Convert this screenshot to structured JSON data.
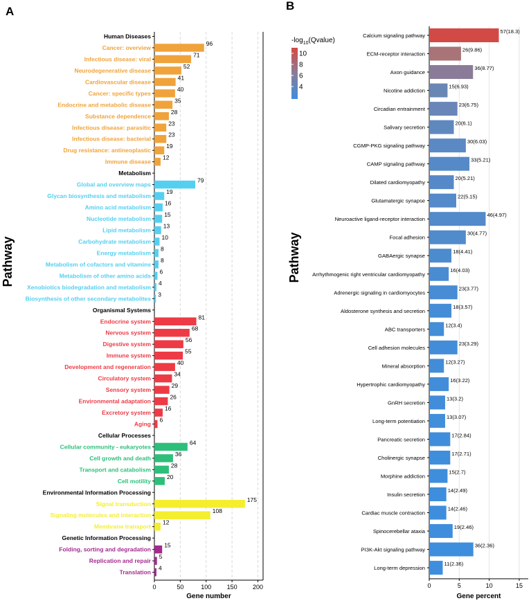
{
  "chart_data": [
    {
      "panel": "A",
      "type": "bar",
      "orientation": "horizontal",
      "xlabel": "Gene number",
      "ylabel": "Pathway",
      "xlim": [
        0,
        210
      ],
      "xticks": [
        0,
        50,
        100,
        150,
        200
      ],
      "grid": "vertical dashed",
      "groups": [
        {
          "name": "Human Diseases",
          "color": "#F0A33A",
          "items": [
            {
              "label": "Cancer: overview",
              "value": 96
            },
            {
              "label": "Infectious disease: viral",
              "value": 71
            },
            {
              "label": "Neurodegenerative disease",
              "value": 52
            },
            {
              "label": "Cardiovascular disease",
              "value": 41
            },
            {
              "label": "Cancer: specific types",
              "value": 40
            },
            {
              "label": "Endocrine and metabolic disease",
              "value": 35
            },
            {
              "label": "Substance dependence",
              "value": 28
            },
            {
              "label": "Infectious disease: parasitic",
              "value": 23
            },
            {
              "label": "Infectious disease: bacterial",
              "value": 23
            },
            {
              "label": "Drug resistance: antineoplastic",
              "value": 19
            },
            {
              "label": "Immune disease",
              "value": 12
            }
          ]
        },
        {
          "name": "Metabolism",
          "color": "#55CFF0",
          "items": [
            {
              "label": "Global and overview maps",
              "value": 79
            },
            {
              "label": "Glycan biosynthesis and metabolism",
              "value": 19
            },
            {
              "label": "Amino acid metabolism",
              "value": 16
            },
            {
              "label": "Nucleotide metabolism",
              "value": 15
            },
            {
              "label": "Lipid metabolism",
              "value": 13
            },
            {
              "label": "Carbohydrate metabolism",
              "value": 10
            },
            {
              "label": "Energy metabolism",
              "value": 8
            },
            {
              "label": "Metabolism of cofactors and vitamins",
              "value": 8
            },
            {
              "label": "Metabolism of other amino acids",
              "value": 6
            },
            {
              "label": "Xenobiotics biodegradation and metabolism",
              "value": 4
            },
            {
              "label": "Biosynthesis of other secondary metabolites",
              "value": 3
            }
          ]
        },
        {
          "name": "Organismal Systems",
          "color": "#EE3A45",
          "items": [
            {
              "label": "Endocrine system",
              "value": 81
            },
            {
              "label": "Nervous system",
              "value": 68
            },
            {
              "label": "Digestive system",
              "value": 56
            },
            {
              "label": "Immune system",
              "value": 55
            },
            {
              "label": "Development and regeneration",
              "value": 40
            },
            {
              "label": "Circulatory system",
              "value": 34
            },
            {
              "label": "Sensory system",
              "value": 29
            },
            {
              "label": "Environmental adaptation",
              "value": 26
            },
            {
              "label": "Excretory system",
              "value": 16
            },
            {
              "label": "Aging",
              "value": 6
            }
          ]
        },
        {
          "name": "Cellular Processes",
          "color": "#2DBF7A",
          "items": [
            {
              "label": "Cellular community - eukaryotes",
              "value": 64
            },
            {
              "label": "Cell growth and death",
              "value": 36
            },
            {
              "label": "Transport and catabolism",
              "value": 28
            },
            {
              "label": "Cell motility",
              "value": 20
            }
          ]
        },
        {
          "name": "Environmental Information Processing",
          "color": "#F4EE2E",
          "items": [
            {
              "label": "Signal transduction",
              "value": 175
            },
            {
              "label": "Signaling molecules and interaction",
              "value": 108
            },
            {
              "label": "Membrane transport",
              "value": 12
            }
          ]
        },
        {
          "name": "Genetic Information Processing",
          "color": "#A42A8E",
          "items": [
            {
              "label": "Folding, sorting and degradation",
              "value": 15
            },
            {
              "label": "Replication and repair",
              "value": 5
            },
            {
              "label": "Translation",
              "value": 4
            }
          ]
        }
      ]
    },
    {
      "panel": "B",
      "type": "bar",
      "orientation": "horizontal",
      "xlabel": "Gene percent",
      "ylabel": "Pathway",
      "xlim": [
        0,
        16.5
      ],
      "xticks": [
        0,
        5,
        10,
        15
      ],
      "legend": {
        "title_prefix": "-log",
        "title_sub": "10",
        "title_suffix": "(Qvalue)",
        "position": "top-left",
        "ticks": [
          10,
          8,
          6,
          4
        ],
        "range": [
          2.36,
          18.3
        ],
        "colors": [
          "#3E8EDE",
          "#8A7C98",
          "#D24A45"
        ]
      },
      "note": "bar value = gene percent; labels show gene count(-log10 Qvalue)",
      "bars": [
        {
          "label": "Calcium signaling pathway",
          "percent": 11.6,
          "count": 57,
          "q": 18.3,
          "color": "#D24A45"
        },
        {
          "label": "ECM-receptor interaction",
          "percent": 5.3,
          "count": 26,
          "q": 9.86,
          "color": "#A87478"
        },
        {
          "label": "Axon guidance",
          "percent": 7.3,
          "count": 36,
          "q": 8.77,
          "color": "#8A7C98"
        },
        {
          "label": "Nicotine addiction",
          "percent": 3.05,
          "count": 15,
          "q": 6.93,
          "color": "#6A86B5"
        },
        {
          "label": "Circadian entrainment",
          "percent": 4.7,
          "count": 23,
          "q": 6.75,
          "color": "#6A86B8"
        },
        {
          "label": "Salivary secretion",
          "percent": 4.1,
          "count": 20,
          "q": 6.1,
          "color": "#5F88BF"
        },
        {
          "label": "CGMP-PKG signaling pathway",
          "percent": 6.1,
          "count": 30,
          "q": 6.03,
          "color": "#5B89C3"
        },
        {
          "label": "CAMP signaling pathway",
          "percent": 6.7,
          "count": 33,
          "q": 5.21,
          "color": "#5589C8"
        },
        {
          "label": "Dilated cardiomyopathy",
          "percent": 4.1,
          "count": 20,
          "q": 5.21,
          "color": "#5589C8"
        },
        {
          "label": "Glutamatergic synapse",
          "percent": 4.5,
          "count": 22,
          "q": 5.15,
          "color": "#548AC9"
        },
        {
          "label": "Neuroactive ligand-receptor interaction",
          "percent": 9.4,
          "count": 46,
          "q": 4.97,
          "color": "#528ACA"
        },
        {
          "label": "Focal adhesion",
          "percent": 6.1,
          "count": 30,
          "q": 4.77,
          "color": "#508BCC"
        },
        {
          "label": "GABAergic synapse",
          "percent": 3.7,
          "count": 18,
          "q": 4.41,
          "color": "#4D8BCF"
        },
        {
          "label": "Arrhythmogenic right ventricular cardiomyopathy",
          "percent": 3.25,
          "count": 16,
          "q": 4.03,
          "color": "#4A8CD2"
        },
        {
          "label": "Adrenergic signaling in cardiomyocytes",
          "percent": 4.7,
          "count": 23,
          "q": 3.77,
          "color": "#478CD4"
        },
        {
          "label": "Aldosterone synthesis and secretion",
          "percent": 3.7,
          "count": 18,
          "q": 3.57,
          "color": "#458DD6"
        },
        {
          "label": "ABC transporters",
          "percent": 2.45,
          "count": 12,
          "q": 3.4,
          "color": "#448DD7"
        },
        {
          "label": "Cell adhesion molecules",
          "percent": 4.7,
          "count": 23,
          "q": 3.29,
          "color": "#438DD8"
        },
        {
          "label": "Mineral absorption",
          "percent": 2.45,
          "count": 12,
          "q": 3.27,
          "color": "#438DD8"
        },
        {
          "label": "Hypertrophic cardiomyopathy",
          "percent": 3.25,
          "count": 16,
          "q": 3.22,
          "color": "#428DD9"
        },
        {
          "label": "GnRH secretion",
          "percent": 2.65,
          "count": 13,
          "q": 3.2,
          "color": "#428DD9"
        },
        {
          "label": "Long-term potentiation",
          "percent": 2.65,
          "count": 13,
          "q": 3.07,
          "color": "#418EDA"
        },
        {
          "label": "Pancreatic secretion",
          "percent": 3.5,
          "count": 17,
          "q": 2.84,
          "color": "#408EDB"
        },
        {
          "label": "Cholinergic synapse",
          "percent": 3.5,
          "count": 17,
          "q": 2.71,
          "color": "#3F8EDC"
        },
        {
          "label": "Morphine addiction",
          "percent": 3.05,
          "count": 15,
          "q": 2.7,
          "color": "#3F8EDC"
        },
        {
          "label": "Insulin secretion",
          "percent": 2.85,
          "count": 14,
          "q": 2.49,
          "color": "#3E8EDD"
        },
        {
          "label": "Cardiac muscle contraction",
          "percent": 2.85,
          "count": 14,
          "q": 2.46,
          "color": "#3E8EDD"
        },
        {
          "label": "Spinocerebellar ataxia",
          "percent": 3.9,
          "count": 19,
          "q": 2.46,
          "color": "#3E8EDD"
        },
        {
          "label": "PI3K-Akt signaling pathway",
          "percent": 7.35,
          "count": 36,
          "q": 2.36,
          "color": "#3E8EDE"
        },
        {
          "label": "Long-term depression",
          "percent": 2.25,
          "count": 11,
          "q": 2.36,
          "color": "#3E8EDE"
        }
      ]
    }
  ]
}
